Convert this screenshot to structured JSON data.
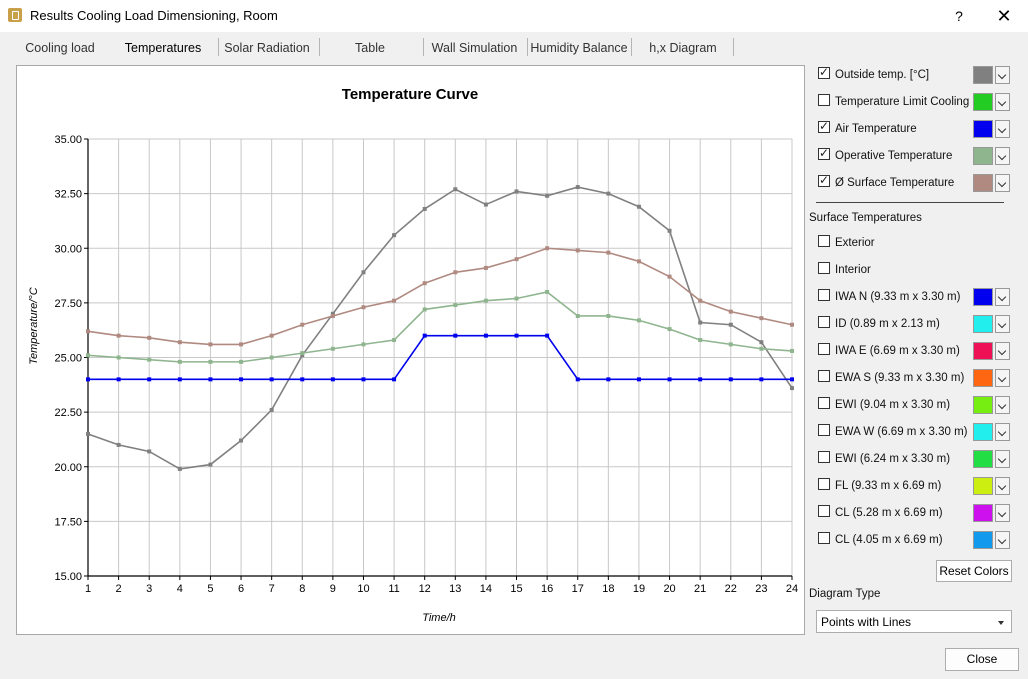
{
  "window": {
    "title": "Results Cooling Load Dimensioning, Room",
    "help_label": "?",
    "close_glyph": "✕"
  },
  "tabs": [
    "Cooling load",
    "Temperatures",
    "Solar Radiation",
    "Table",
    "Wall Simulation",
    "Humidity Balance",
    "h,x Diagram"
  ],
  "active_tab": "Temperatures",
  "series_toggles": [
    {
      "label": "Outside temp. [°C]",
      "checked": true,
      "color": "#808080"
    },
    {
      "label": "Temperature Limit Cooling",
      "checked": false,
      "color": "#22cc22"
    },
    {
      "label": "Air Temperature",
      "checked": true,
      "color": "#0000ee"
    },
    {
      "label": "Operative Temperature",
      "checked": true,
      "color": "#8fb58f"
    },
    {
      "label": "Ø Surface Temperature",
      "checked": true,
      "color": "#b08a80"
    }
  ],
  "surface_section_label": "Surface Temperatures",
  "surface_simple": [
    {
      "label": "Exterior",
      "checked": false
    },
    {
      "label": "Interior",
      "checked": false
    }
  ],
  "surfaces": [
    {
      "label": "IWA N (9.33 m x 3.30 m)",
      "checked": false,
      "color": "#0000ee"
    },
    {
      "label": "ID (0.89 m x 2.13 m)",
      "checked": false,
      "color": "#22eeee"
    },
    {
      "label": "IWA E (6.69 m x 3.30 m)",
      "checked": false,
      "color": "#ee1155"
    },
    {
      "label": "EWA S (9.33 m x 3.30 m)",
      "checked": false,
      "color": "#ff6611"
    },
    {
      "label": "EWI (9.04 m x 3.30 m)",
      "checked": false,
      "color": "#77ee11"
    },
    {
      "label": "EWA W (6.69 m x 3.30 m)",
      "checked": false,
      "color": "#22eeee"
    },
    {
      "label": "EWI (6.24 m x 3.30 m)",
      "checked": false,
      "color": "#22dd44"
    },
    {
      "label": "FL (9.33 m x 6.69 m)",
      "checked": false,
      "color": "#ccee11"
    },
    {
      "label": "CL (5.28 m x 6.69 m)",
      "checked": false,
      "color": "#cc11ee"
    },
    {
      "label": "CL (4.05 m x 6.69 m)",
      "checked": false,
      "color": "#1199ee"
    }
  ],
  "reset_colors_label": "Reset Colors",
  "diagram_type_label": "Diagram Type",
  "diagram_type_value": "Points with Lines",
  "close_button_label": "Close",
  "chart_data": {
    "type": "line",
    "title": "Temperature Curve",
    "xlabel": "Time/h",
    "ylabel": "Temperature/°C",
    "x": [
      1,
      2,
      3,
      4,
      5,
      6,
      7,
      8,
      9,
      10,
      11,
      12,
      13,
      14,
      15,
      16,
      17,
      18,
      19,
      20,
      21,
      22,
      23,
      24
    ],
    "ylim": [
      15,
      35
    ],
    "yticks": [
      "15.00",
      "17.50",
      "20.00",
      "22.50",
      "25.00",
      "27.50",
      "30.00",
      "32.50",
      "35.00"
    ],
    "grid": true,
    "series": [
      {
        "name": "Outside temp. [°C]",
        "color": "#808080",
        "values": [
          21.5,
          21.0,
          20.7,
          19.9,
          20.1,
          21.2,
          22.6,
          25.1,
          27.0,
          28.9,
          30.6,
          31.8,
          32.7,
          32.0,
          32.6,
          32.4,
          32.8,
          32.5,
          31.9,
          30.8,
          26.6,
          26.5,
          25.7,
          23.6
        ]
      },
      {
        "name": "Ø Surface Temperature",
        "color": "#b08a80",
        "values": [
          26.2,
          26.0,
          25.9,
          25.7,
          25.6,
          25.6,
          26.0,
          26.5,
          26.9,
          27.3,
          27.6,
          28.4,
          28.9,
          29.1,
          29.5,
          30.0,
          29.9,
          29.8,
          29.4,
          28.7,
          27.6,
          27.1,
          26.8,
          26.5
        ]
      },
      {
        "name": "Operative Temperature",
        "color": "#8fb58f",
        "values": [
          25.1,
          25.0,
          24.9,
          24.8,
          24.8,
          24.8,
          25.0,
          25.2,
          25.4,
          25.6,
          25.8,
          27.2,
          27.4,
          27.6,
          27.7,
          28.0,
          26.9,
          26.9,
          26.7,
          26.3,
          25.8,
          25.6,
          25.4,
          25.3
        ]
      },
      {
        "name": "Air Temperature",
        "color": "#0000ee",
        "values": [
          24,
          24,
          24,
          24,
          24,
          24,
          24,
          24,
          24,
          24,
          24,
          26,
          26,
          26,
          26,
          26,
          24,
          24,
          24,
          24,
          24,
          24,
          24,
          24
        ]
      }
    ]
  }
}
